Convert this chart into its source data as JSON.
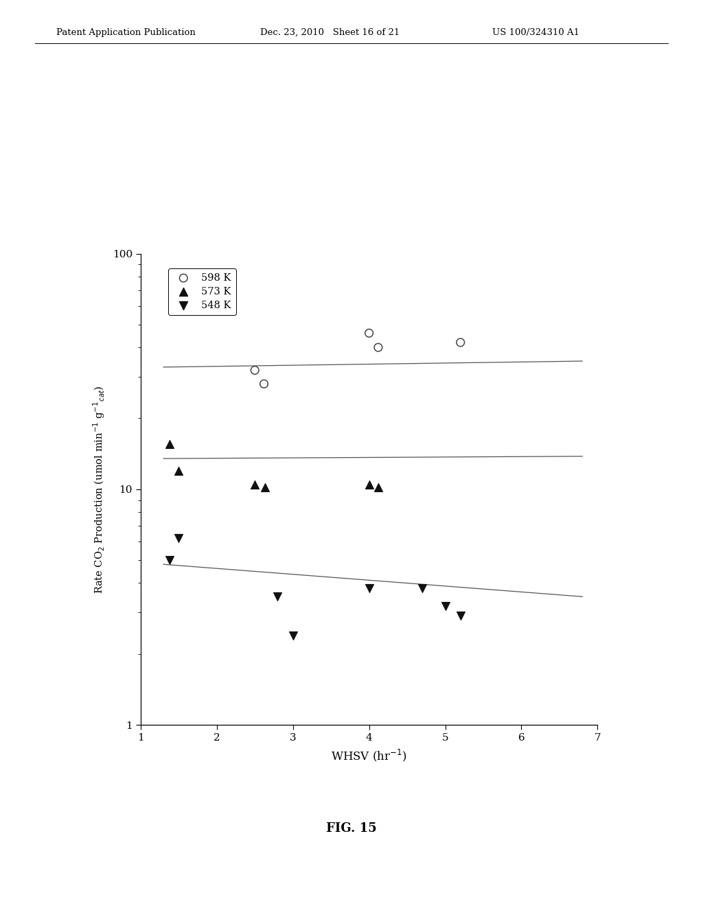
{
  "xlabel": "WHSV (hr⁻¹)",
  "xmin": 1,
  "xmax": 7,
  "ymin": 1,
  "ymax": 100,
  "series": [
    {
      "label": "598 K",
      "marker": "circle_open",
      "x": [
        2.5,
        2.62,
        4.0,
        4.12,
        5.2
      ],
      "y": [
        32.0,
        28.0,
        46.0,
        40.0,
        42.0
      ],
      "line_x": [
        1.3,
        6.8
      ],
      "line_y": [
        33.0,
        35.0
      ]
    },
    {
      "label": "573 K",
      "marker": "triangle_up",
      "x": [
        1.38,
        1.5,
        2.5,
        2.63,
        4.0,
        4.12
      ],
      "y": [
        15.5,
        12.0,
        10.5,
        10.2,
        10.5,
        10.2
      ],
      "line_x": [
        1.3,
        6.8
      ],
      "line_y": [
        13.5,
        13.8
      ]
    },
    {
      "label": "548 K",
      "marker": "triangle_down",
      "x": [
        1.38,
        1.5,
        2.8,
        3.0,
        4.0,
        4.7,
        5.0,
        5.2
      ],
      "y": [
        5.0,
        6.2,
        3.5,
        2.4,
        3.8,
        3.8,
        3.2,
        2.9
      ],
      "line_x": [
        1.3,
        6.8
      ],
      "line_y": [
        4.8,
        3.5
      ]
    }
  ],
  "fig_caption": "FIG. 15",
  "header_left": "Patent Application Publication",
  "header_center": "Dec. 23, 2010   Sheet 16 of 21",
  "header_right": "US 100/324310 A1",
  "background_color": "#ffffff"
}
